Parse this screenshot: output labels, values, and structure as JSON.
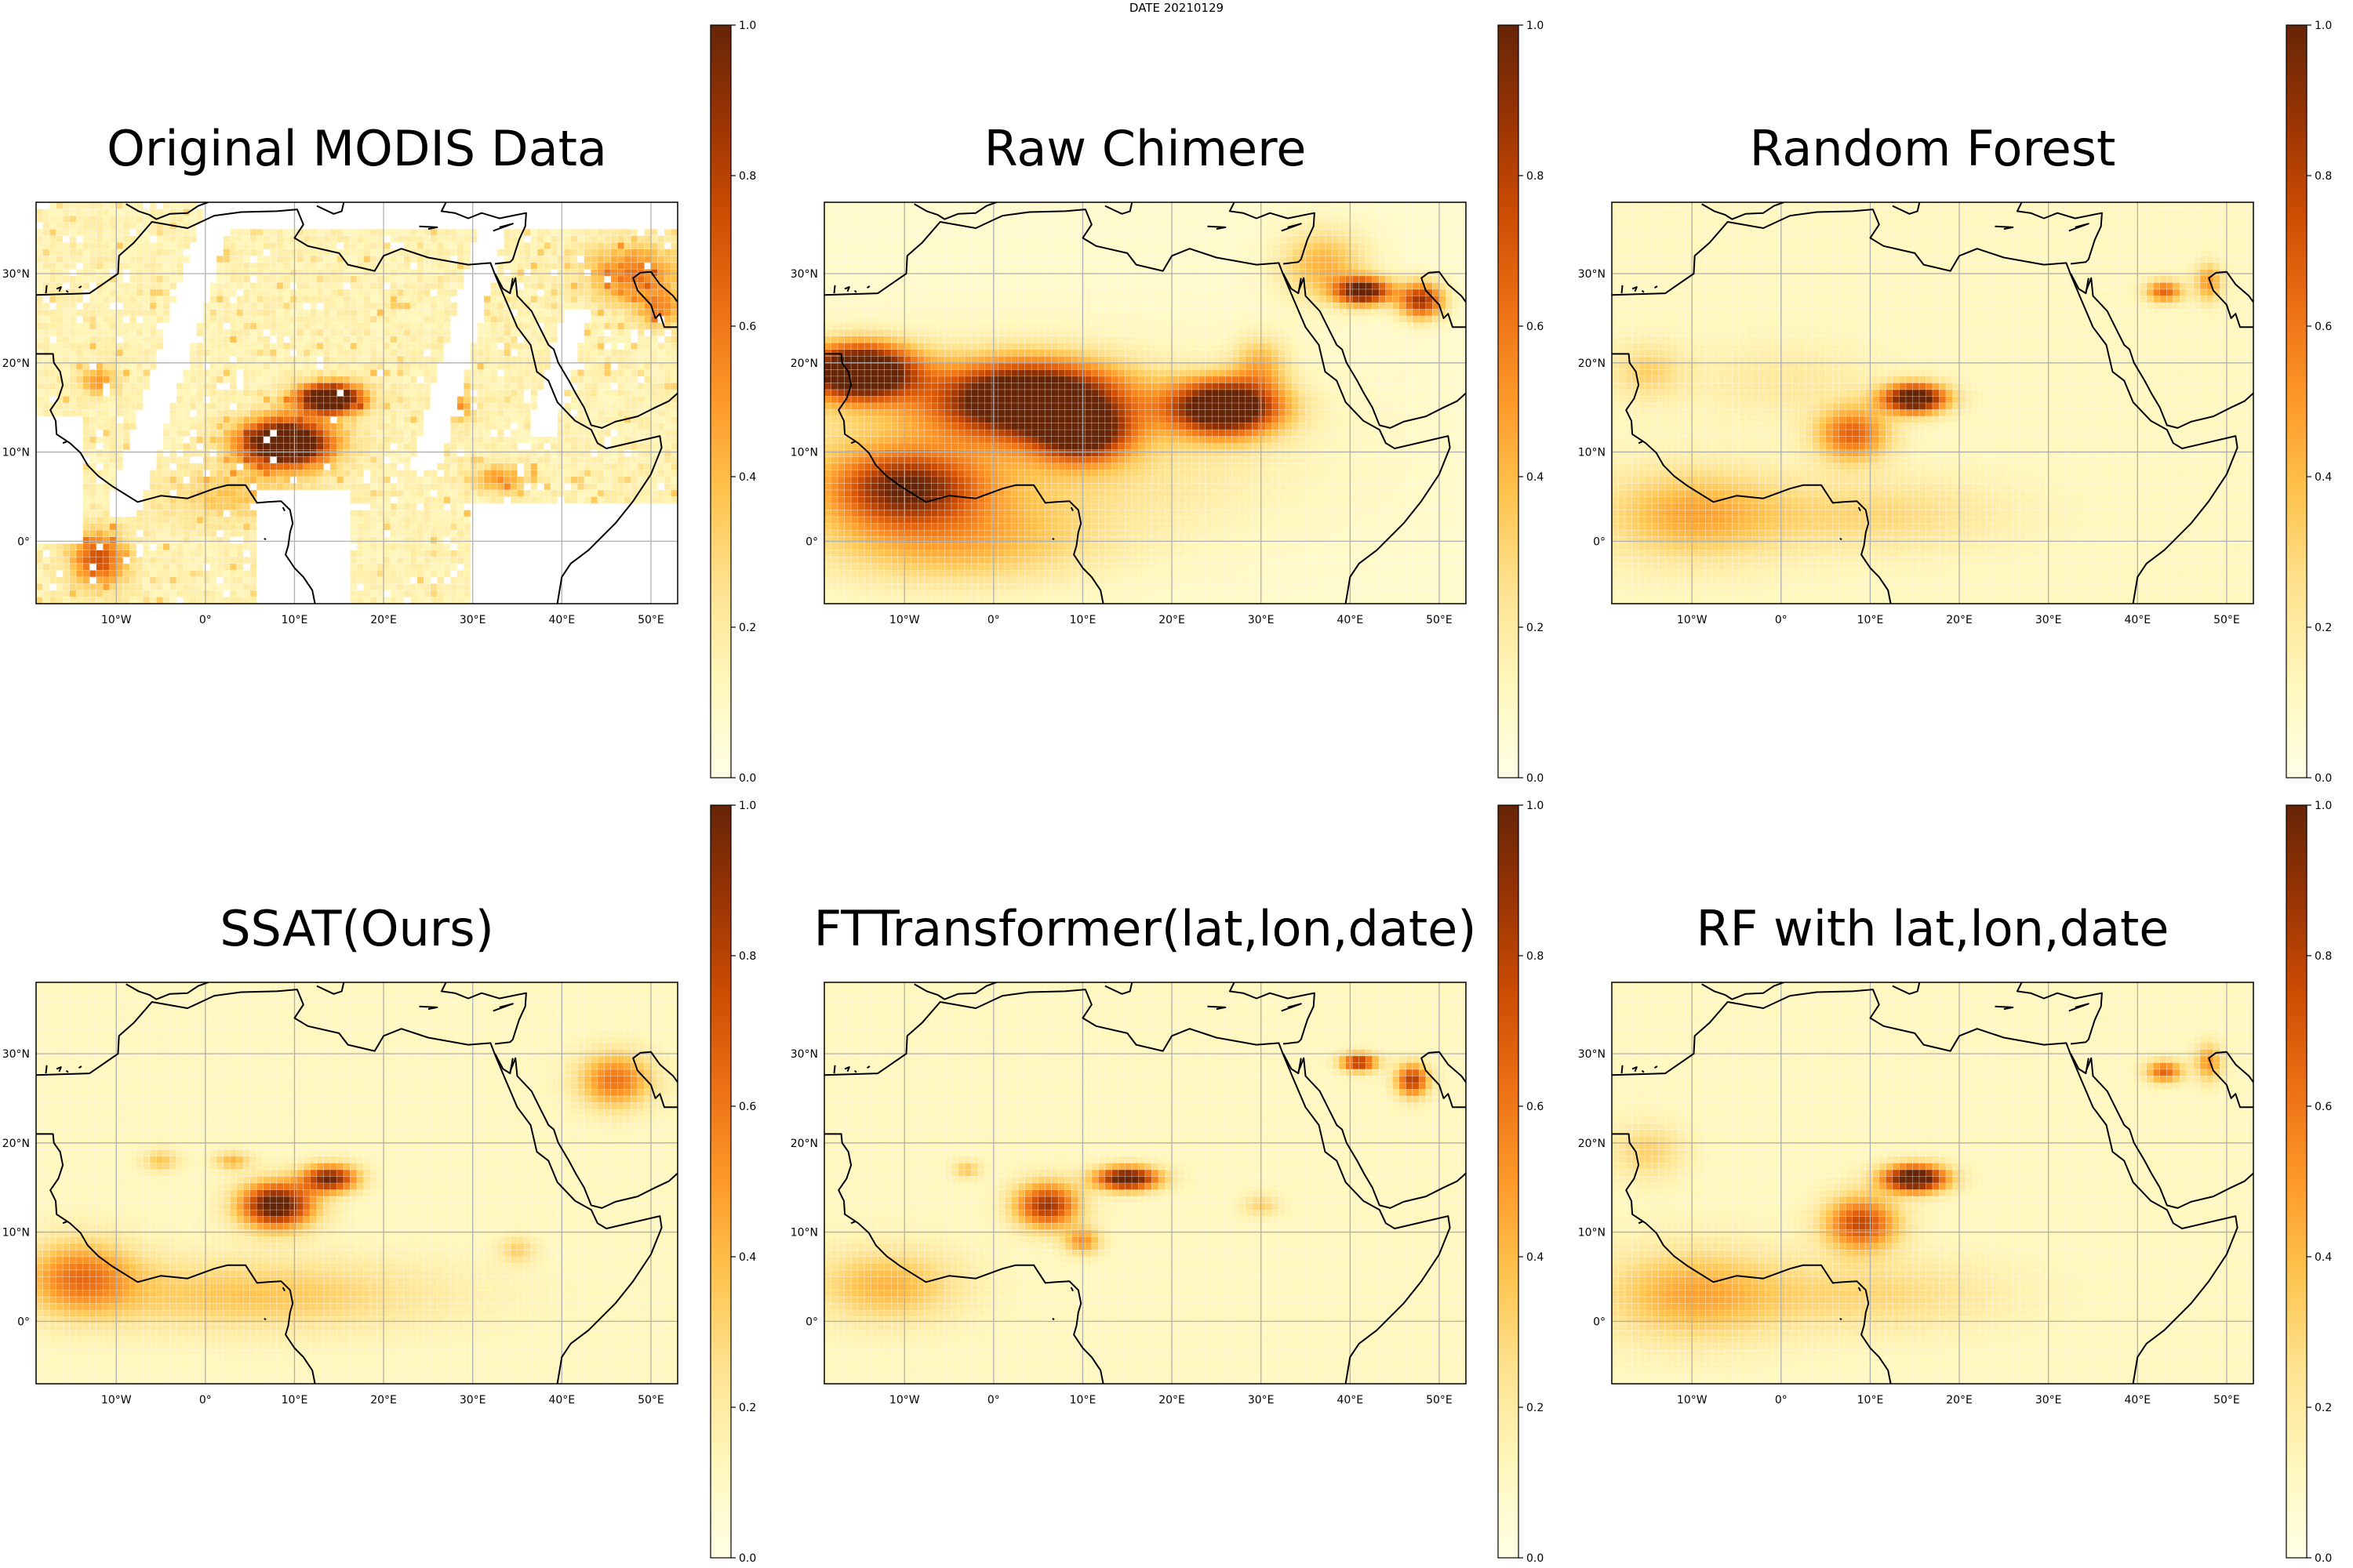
{
  "figure": {
    "suptitle": "DATE 20210129"
  },
  "map_extent": {
    "lon_min": -19,
    "lon_max": 53,
    "lat_min": -7,
    "lat_max": 38
  },
  "x_ticks": [
    {
      "lon": -10,
      "label": "10°W"
    },
    {
      "lon": 0,
      "label": "0°"
    },
    {
      "lon": 10,
      "label": "10°E"
    },
    {
      "lon": 20,
      "label": "20°E"
    },
    {
      "lon": 30,
      "label": "30°E"
    },
    {
      "lon": 40,
      "label": "40°E"
    },
    {
      "lon": 50,
      "label": "50°E"
    }
  ],
  "y_ticks": [
    {
      "lat": 0,
      "label": "0°"
    },
    {
      "lat": 10,
      "label": "10°N"
    },
    {
      "lat": 20,
      "label": "20°N"
    },
    {
      "lat": 30,
      "label": "30°N"
    }
  ],
  "colorbar": {
    "ticks": [
      "0.0",
      "0.2",
      "0.4",
      "0.6",
      "0.8",
      "1.0"
    ],
    "range": [
      0,
      1
    ],
    "colormap": [
      "#ffffe5",
      "#fff7bc",
      "#fee391",
      "#fec44f",
      "#fe9929",
      "#ec7014",
      "#cc4c02",
      "#993404",
      "#662506"
    ]
  },
  "gridline_color": "#b0b0b0",
  "coastline_color": "#000000",
  "panels": [
    {
      "title": "Original MODIS Data",
      "style": "modis"
    },
    {
      "title": "Raw Chimere",
      "style": "chimere"
    },
    {
      "title": "Random Forest",
      "style": "rf"
    },
    {
      "title": "SSAT(Ours)",
      "style": "ssat"
    },
    {
      "title": "FTTransformer(lat,lon,date)",
      "style": "ftt"
    },
    {
      "title": "RF with lat,lon,date",
      "style": "rflld"
    }
  ],
  "chart_data": {
    "type": "heatmap",
    "title": "DATE 20210129",
    "xlabel": "",
    "ylabel": "",
    "x_range_deg": [
      -19,
      53
    ],
    "y_range_deg": [
      -7,
      38
    ],
    "value_range": [
      0,
      1
    ],
    "panels": [
      {
        "name": "Original MODIS Data",
        "hotspots": [
          {
            "lon": 9,
            "lat": 11,
            "value": 0.95
          },
          {
            "lon": 14,
            "lat": 16,
            "value": 1.0
          },
          {
            "lon": -14,
            "lat": -3,
            "value": 0.6
          },
          {
            "lon": 45,
            "lat": 29,
            "value": 0.55
          }
        ]
      },
      {
        "name": "Raw Chimere",
        "hotspots": [
          {
            "lon": -15,
            "lat": 19,
            "value": 1.0
          },
          {
            "lon": 8,
            "lat": 14,
            "value": 1.0
          },
          {
            "lon": 26,
            "lat": 15,
            "value": 1.0
          },
          {
            "lon": 42,
            "lat": 28,
            "value": 0.95
          },
          {
            "lon": 48,
            "lat": 27,
            "value": 0.8
          }
        ]
      },
      {
        "name": "Random Forest",
        "hotspots": [
          {
            "lon": 15,
            "lat": 16,
            "value": 1.0
          },
          {
            "lon": 8,
            "lat": 12,
            "value": 0.7
          },
          {
            "lon": 43,
            "lat": 28,
            "value": 0.65
          },
          {
            "lon": -12,
            "lat": 4,
            "value": 0.45
          }
        ]
      },
      {
        "name": "SSAT(Ours)",
        "hotspots": [
          {
            "lon": 8,
            "lat": 13,
            "value": 1.0
          },
          {
            "lon": 14,
            "lat": 16,
            "value": 0.95
          },
          {
            "lon": -14,
            "lat": 5,
            "value": 0.55
          },
          {
            "lon": 46,
            "lat": 27,
            "value": 0.55
          }
        ]
      },
      {
        "name": "FTTransformer(lat,lon,date)",
        "hotspots": [
          {
            "lon": 15,
            "lat": 16,
            "value": 1.0
          },
          {
            "lon": 6,
            "lat": 13,
            "value": 0.85
          },
          {
            "lon": 41,
            "lat": 29,
            "value": 0.85
          },
          {
            "lon": 47,
            "lat": 27,
            "value": 0.8
          }
        ]
      },
      {
        "name": "RF with lat,lon,date",
        "hotspots": [
          {
            "lon": 15,
            "lat": 16,
            "value": 1.0
          },
          {
            "lon": 9,
            "lat": 11,
            "value": 0.75
          },
          {
            "lon": 43,
            "lat": 28,
            "value": 0.65
          },
          {
            "lon": -12,
            "lat": 4,
            "value": 0.45
          }
        ]
      }
    ]
  }
}
